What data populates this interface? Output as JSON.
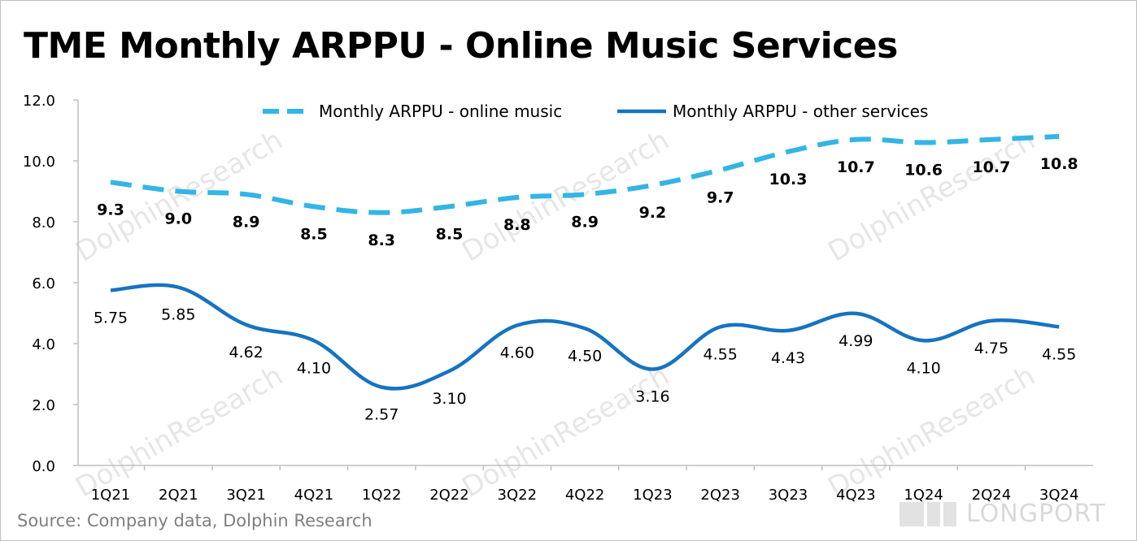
{
  "header": {
    "title": "TME Monthly ARPPU - Online Music Services"
  },
  "footer": {
    "source": "Source: Company data, Dolphin Research",
    "brand": "LONGPORT"
  },
  "watermark": {
    "text": "DolphinResearch"
  },
  "colors": {
    "online_music": "#33b5e5",
    "other_services": "#1673c1",
    "axis": "#bfbfbf"
  },
  "chart_data": {
    "type": "line",
    "categories": [
      "1Q21",
      "2Q21",
      "3Q21",
      "4Q21",
      "1Q22",
      "2Q22",
      "3Q22",
      "4Q22",
      "1Q23",
      "2Q23",
      "3Q23",
      "4Q23",
      "1Q24",
      "2Q24",
      "3Q24"
    ],
    "yticks": [
      "0.0",
      "2.0",
      "4.0",
      "6.0",
      "8.0",
      "10.0",
      "12.0"
    ],
    "ylim": [
      0,
      12
    ],
    "legend_position": "top-center",
    "grid": false,
    "series": [
      {
        "name": "Monthly ARPPU - online music",
        "style": "dashed",
        "values": [
          9.3,
          9.0,
          8.9,
          8.5,
          8.3,
          8.5,
          8.8,
          8.9,
          9.2,
          9.7,
          10.3,
          10.7,
          10.6,
          10.7,
          10.8
        ],
        "labels": [
          "9.3",
          "9.0",
          "8.9",
          "8.5",
          "8.3",
          "8.5",
          "8.8",
          "8.9",
          "9.2",
          "9.7",
          "10.3",
          "10.7",
          "10.6",
          "10.7",
          "10.8"
        ]
      },
      {
        "name": "Monthly ARPPU - other services",
        "style": "solid",
        "values": [
          5.75,
          5.85,
          4.62,
          4.1,
          2.57,
          3.1,
          4.6,
          4.5,
          3.16,
          4.55,
          4.43,
          4.99,
          4.1,
          4.75,
          4.55
        ],
        "labels": [
          "5.75",
          "5.85",
          "4.62",
          "4.10",
          "2.57",
          "3.10",
          "4.60",
          "4.50",
          "3.16",
          "4.55",
          "4.43",
          "4.99",
          "4.10",
          "4.75",
          "4.55"
        ]
      }
    ]
  }
}
